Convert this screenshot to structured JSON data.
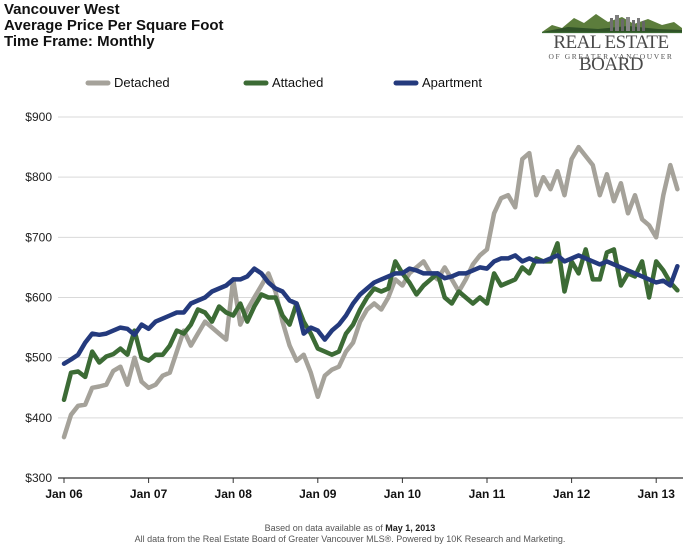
{
  "header": {
    "line1": "Vancouver West",
    "line2": "Average Price Per Square Foot",
    "line3": "Time Frame: Monthly"
  },
  "logo": {
    "main": "REAL ESTATE BOARD",
    "sub": "OF GREATER VANCOUVER"
  },
  "footer": {
    "line1_prefix": "Based on data available as of ",
    "line1_date": "May 1, 2013",
    "line2": "All data from the Real Estate Board of Greater Vancouver MLS®. Powered by 10K Research and Marketing."
  },
  "colors": {
    "detached": "#a5a29a",
    "attached": "#3c6b35",
    "apartment": "#243a7d",
    "grid": "#d9d9d9",
    "axis": "#333333"
  },
  "chart_data": {
    "type": "line",
    "title": "Average Price Per Square Foot",
    "xlabel": "",
    "ylabel": "",
    "ylim": [
      300,
      900
    ],
    "yticks": [
      300,
      400,
      500,
      600,
      700,
      800,
      900
    ],
    "ytick_labels": [
      "$300",
      "$400",
      "$500",
      "$600",
      "$700",
      "$800",
      "$900"
    ],
    "xtick_labels": [
      "Jan 06",
      "Jan 07",
      "Jan 08",
      "Jan 09",
      "Jan 10",
      "Jan 11",
      "Jan 12",
      "Jan 13"
    ],
    "xtick_index": [
      0,
      12,
      24,
      36,
      48,
      60,
      72,
      84
    ],
    "x_count": 88,
    "legend_position": "top",
    "series": [
      {
        "name": "Detached",
        "color_key": "detached",
        "values": [
          368,
          405,
          420,
          422,
          450,
          452,
          455,
          478,
          485,
          455,
          500,
          460,
          450,
          455,
          470,
          475,
          510,
          545,
          520,
          540,
          560,
          550,
          540,
          530,
          630,
          555,
          580,
          600,
          620,
          640,
          610,
          560,
          520,
          495,
          505,
          475,
          435,
          470,
          480,
          485,
          510,
          525,
          560,
          580,
          590,
          580,
          600,
          630,
          620,
          640,
          650,
          660,
          640,
          630,
          650,
          630,
          610,
          630,
          655,
          670,
          680,
          740,
          765,
          770,
          750,
          830,
          840,
          770,
          800,
          780,
          810,
          770,
          830,
          850,
          835,
          820,
          770,
          805,
          760,
          790,
          740,
          770,
          730,
          720,
          700,
          770,
          820,
          780
        ]
      },
      {
        "name": "Attached",
        "color_key": "attached",
        "values": [
          430,
          475,
          477,
          468,
          510,
          492,
          502,
          506,
          515,
          505,
          545,
          500,
          495,
          505,
          505,
          520,
          545,
          540,
          555,
          580,
          575,
          560,
          585,
          575,
          570,
          590,
          560,
          585,
          605,
          600,
          600,
          570,
          555,
          590,
          560,
          540,
          515,
          510,
          505,
          510,
          540,
          555,
          580,
          600,
          615,
          610,
          615,
          660,
          640,
          625,
          605,
          620,
          630,
          640,
          600,
          590,
          610,
          600,
          590,
          600,
          590,
          640,
          620,
          625,
          630,
          650,
          640,
          665,
          660,
          660,
          690,
          610,
          660,
          640,
          680,
          630,
          630,
          675,
          680,
          620,
          640,
          635,
          660,
          600,
          660,
          645,
          625,
          612
        ]
      },
      {
        "name": "Apartment",
        "color_key": "apartment",
        "values": [
          490,
          497,
          505,
          525,
          540,
          538,
          540,
          545,
          550,
          548,
          538,
          555,
          548,
          560,
          565,
          570,
          575,
          575,
          590,
          595,
          600,
          610,
          615,
          620,
          630,
          630,
          635,
          648,
          640,
          625,
          615,
          610,
          595,
          590,
          540,
          550,
          545,
          530,
          545,
          555,
          570,
          590,
          605,
          615,
          625,
          630,
          635,
          640,
          640,
          648,
          645,
          640,
          640,
          640,
          632,
          635,
          640,
          640,
          645,
          650,
          648,
          660,
          665,
          665,
          670,
          660,
          665,
          660,
          660,
          665,
          670,
          660,
          665,
          670,
          665,
          660,
          655,
          660,
          655,
          650,
          645,
          640,
          635,
          630,
          625,
          628,
          620,
          652
        ]
      }
    ]
  }
}
